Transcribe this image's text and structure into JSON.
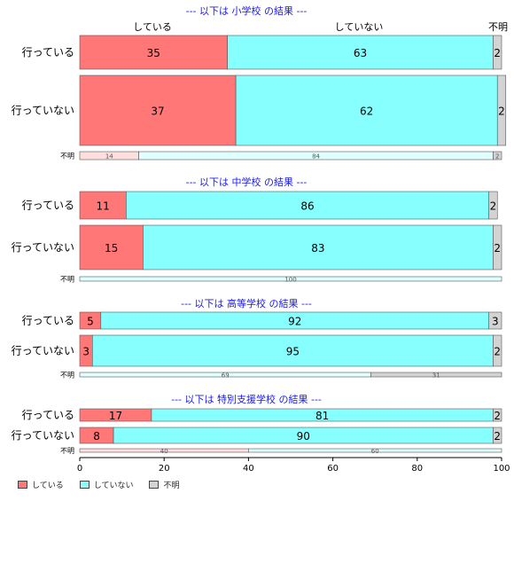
{
  "chart_data": {
    "type": "bar",
    "orientation": "horizontal-stacked-percent",
    "xlim": [
      0,
      100
    ],
    "xticks": [
      "0",
      "20",
      "40",
      "60",
      "80",
      "100"
    ],
    "top_header_labels": [
      "している",
      "していない",
      "不明"
    ],
    "series": [
      {
        "name": "している",
        "color": "#ff7777"
      },
      {
        "name": "していない",
        "color": "#88ffff"
      },
      {
        "name": "不明",
        "color": "#d3d3d3"
      }
    ],
    "panels": [
      {
        "title": "--- 以下は 小学校 の結果 ---",
        "rows": [
          {
            "label": "行っている",
            "values": [
              35,
              63,
              2
            ]
          },
          {
            "label": "行っていない",
            "values": [
              37,
              62,
              2
            ]
          },
          {
            "label": "不明",
            "values": [
              14,
              84,
              2
            ]
          }
        ]
      },
      {
        "title": "--- 以下は 中学校 の結果 ---",
        "rows": [
          {
            "label": "行っている",
            "values": [
              11,
              86,
              2
            ]
          },
          {
            "label": "行っていない",
            "values": [
              15,
              83,
              2
            ]
          },
          {
            "label": "不明",
            "values": [
              0,
              100,
              0
            ]
          }
        ]
      },
      {
        "title": "--- 以下は 高等学校 の結果 ---",
        "rows": [
          {
            "label": "行っている",
            "values": [
              5,
              92,
              3
            ]
          },
          {
            "label": "行っていない",
            "values": [
              3,
              95,
              2
            ]
          },
          {
            "label": "不明",
            "values": [
              0,
              69,
              31
            ]
          }
        ]
      },
      {
        "title": "--- 以下は 特別支援学校 の結果 ---",
        "rows": [
          {
            "label": "行っている",
            "values": [
              17,
              81,
              2
            ]
          },
          {
            "label": "行っていない",
            "values": [
              8,
              90,
              2
            ]
          },
          {
            "label": "不明",
            "values": [
              40,
              60,
              0
            ]
          }
        ]
      }
    ]
  }
}
